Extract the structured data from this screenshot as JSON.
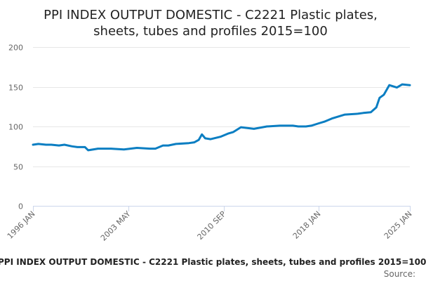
{
  "chart_data": {
    "type": "line",
    "title_lines": [
      "PPI INDEX OUTPUT DOMESTIC - C2221 Plastic plates,",
      "sheets, tubes and profiles 2015=100"
    ],
    "xlabel": "",
    "ylabel": "",
    "xlim": [
      "1996-01",
      "2025-01"
    ],
    "ylim": [
      0,
      200
    ],
    "yticks": [
      0,
      50,
      100,
      150,
      200
    ],
    "xtick_labels": [
      "1996 JAN",
      "2003 MAY",
      "2010 SEP",
      "2018 JAN",
      "2025 JAN"
    ],
    "xtick_values": [
      "1996-01",
      "2003-05",
      "2010-09",
      "2018-01",
      "2025-01"
    ],
    "grid": true,
    "series": [
      {
        "color": "#0b7ec2",
        "x": [
          "1996-01",
          "1996-06",
          "1997-01",
          "1997-06",
          "1998-01",
          "1998-06",
          "1999-01",
          "1999-06",
          "2000-01",
          "2000-04",
          "2001-01",
          "2002-01",
          "2003-01",
          "2004-01",
          "2005-01",
          "2005-06",
          "2006-01",
          "2006-06",
          "2007-01",
          "2008-01",
          "2008-06",
          "2008-10",
          "2009-01",
          "2009-04",
          "2009-09",
          "2010-06",
          "2011-01",
          "2011-06",
          "2012-01",
          "2013-01",
          "2014-01",
          "2015-01",
          "2016-01",
          "2016-06",
          "2017-01",
          "2017-06",
          "2018-01",
          "2018-06",
          "2019-01",
          "2020-01",
          "2021-01",
          "2021-06",
          "2022-01",
          "2022-06",
          "2022-09",
          "2023-01",
          "2023-06",
          "2024-01",
          "2024-06",
          "2025-01"
        ],
        "values": [
          77,
          78,
          77,
          77,
          76,
          77,
          75,
          74,
          74,
          70,
          72,
          72,
          71,
          73,
          72,
          72,
          76,
          76,
          78,
          79,
          80,
          83,
          90,
          85,
          84,
          87,
          91,
          93,
          99,
          97,
          100,
          101,
          101,
          100,
          100,
          101,
          104,
          106,
          110,
          115,
          116,
          117,
          118,
          124,
          136,
          140,
          152,
          149,
          153,
          152
        ]
      }
    ]
  },
  "footer": {
    "caption": "PPI INDEX OUTPUT DOMESTIC - C2221 Plastic plates, sheets, tubes and profiles 2015=100",
    "source": "Source:"
  },
  "colors": {
    "line": "#0b7ec2",
    "grid": "#e6e6e6",
    "axis": "#ccd6eb",
    "text": "#666666"
  }
}
